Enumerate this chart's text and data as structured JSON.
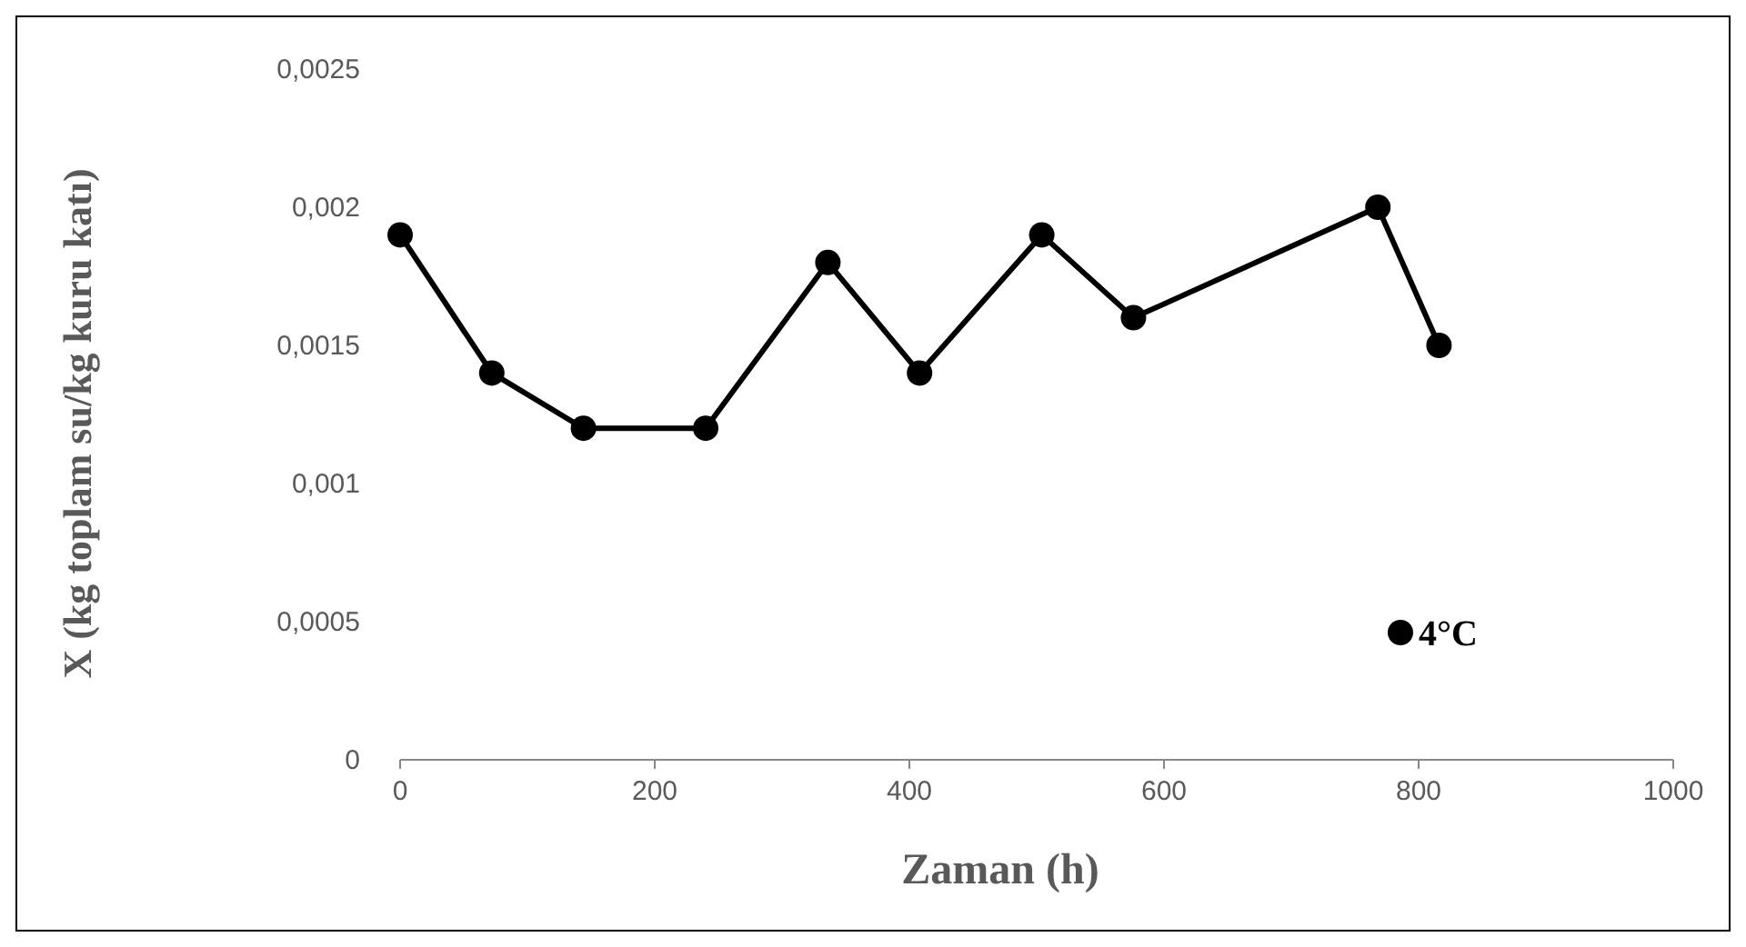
{
  "chart_data": {
    "type": "line",
    "xlabel": "Zaman (h)",
    "ylabel": "X (kg toplam su/kg kuru katı)",
    "x": [
      0,
      72,
      144,
      240,
      336,
      408,
      504,
      576,
      768,
      816
    ],
    "series": [
      {
        "name": "4°C",
        "color": "#000000",
        "values": [
          0.0019,
          0.0014,
          0.0012,
          0.0012,
          0.0018,
          0.0014,
          0.0019,
          0.0016,
          0.002,
          0.0015
        ]
      }
    ],
    "xlim": [
      0,
      1000
    ],
    "xticks": [
      0,
      200,
      400,
      600,
      800,
      1000
    ],
    "ylim": [
      0,
      0.0025
    ],
    "yticks": [
      {
        "value": 0,
        "label": "0"
      },
      {
        "value": 0.0005,
        "label": "0,0005"
      },
      {
        "value": 0.001,
        "label": "0,001"
      },
      {
        "value": 0.0015,
        "label": "0,0015"
      },
      {
        "value": 0.002,
        "label": "0,002"
      },
      {
        "value": 0.0025,
        "label": "0,0025"
      }
    ],
    "marker": "circle",
    "line_style": "solid",
    "grid": false,
    "legend": "right"
  }
}
